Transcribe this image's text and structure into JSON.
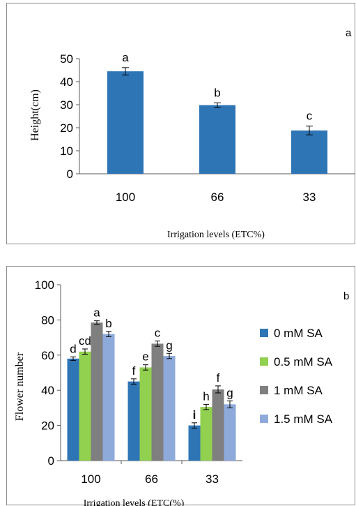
{
  "colors": {
    "axis": "#595959",
    "errorbar": "#000000",
    "text": "#000000"
  },
  "chart_data": [
    {
      "type": "bar",
      "panel_label": "a",
      "categories": [
        "100",
        "66",
        "33"
      ],
      "values": [
        44.5,
        29.8,
        18.8
      ],
      "errors": [
        1.6,
        1.0,
        1.9
      ],
      "significance": [
        "a",
        "b",
        "c"
      ],
      "ylabel": "Height(cm)",
      "xlabel": "Irrigation levels (ETC%)",
      "ylim": [
        0,
        50
      ],
      "yticks": [
        "0",
        "10",
        "20",
        "30",
        "40",
        "50"
      ],
      "color": "#2e75b6",
      "grid": false
    },
    {
      "type": "bar",
      "panel_label": "b",
      "categories": [
        "100",
        "66",
        "33"
      ],
      "series": [
        {
          "name": "0 mM SA",
          "color": "#2e75b6",
          "values": [
            58,
            45,
            20
          ],
          "errors": [
            1.0,
            1.5,
            1.5
          ],
          "significance": [
            "d",
            "f",
            "i"
          ]
        },
        {
          "name": "0.5 mM SA",
          "color": "#92d050",
          "values": [
            62,
            53,
            30.5
          ],
          "errors": [
            1.5,
            1.5,
            1.5
          ],
          "significance": [
            "cd",
            "e",
            "h"
          ]
        },
        {
          "name": "1 mM SA",
          "color": "#7f7f7f",
          "values": [
            78.5,
            66.5,
            40.5
          ],
          "errors": [
            1.0,
            1.5,
            2.0
          ],
          "significance": [
            "a",
            "c",
            "f"
          ]
        },
        {
          "name": "1.5 mM SA",
          "color": "#8eaadb",
          "values": [
            72,
            59.5,
            32
          ],
          "errors": [
            1.5,
            1.5,
            2.0
          ],
          "significance": [
            "b",
            "g",
            "g"
          ]
        }
      ],
      "ylabel": "Flower number",
      "xlabel": "Irrigation levels (ETC(%)",
      "ylim": [
        0,
        100
      ],
      "yticks": [
        "0",
        "20",
        "40",
        "60",
        "80",
        "100"
      ],
      "legend_position": "right",
      "grid": false
    }
  ]
}
